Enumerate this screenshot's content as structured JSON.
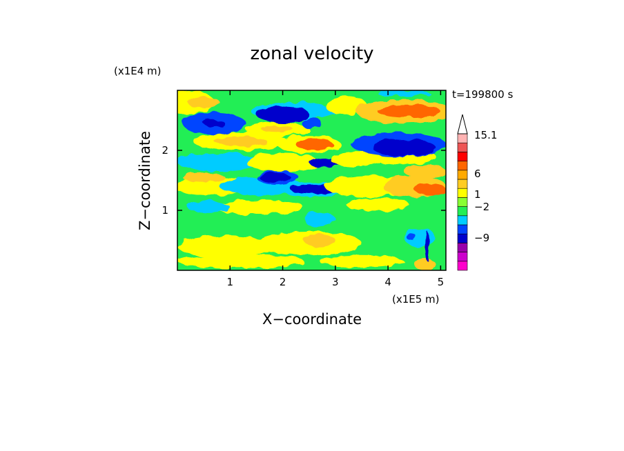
{
  "chart_data": {
    "type": "heatmap",
    "title": "zonal velocity",
    "time_label": "t=199800 s",
    "xlabel": "X−coordinate",
    "ylabel": "Z−coordinate",
    "x_unit_label": "(x1E5 m)",
    "y_unit_label": "(x1E4 m)",
    "xlim": [
      0,
      5.1
    ],
    "ylim": [
      0,
      3.0
    ],
    "x_ticks": [
      1,
      2,
      3,
      4,
      5
    ],
    "y_ticks": [
      1,
      2
    ],
    "colorbar": {
      "colors": [
        "#ff00cc",
        "#cc00cc",
        "#9900aa",
        "#0000cc",
        "#0044ff",
        "#00ccff",
        "#22ee55",
        "#88ff33",
        "#ffff00",
        "#ffcc22",
        "#ffaa00",
        "#ff6600",
        "#ff0000",
        "#ee5555",
        "#ffb3b3"
      ],
      "tick_labels": [
        "15.1",
        "6",
        "1",
        "−2",
        "−9"
      ],
      "extend_top": true
    },
    "field": {
      "base": "#22ee55",
      "blobs": [
        {
          "x": 0.9,
          "z": 0.4,
          "rx": 0.9,
          "rz": 0.18,
          "level": "#ffff00"
        },
        {
          "x": 2.5,
          "z": 0.45,
          "rx": 1.0,
          "rz": 0.2,
          "level": "#ffff00"
        },
        {
          "x": 2.7,
          "z": 0.5,
          "rx": 0.3,
          "rz": 0.1,
          "level": "#ffcc22"
        },
        {
          "x": 1.2,
          "z": 0.15,
          "rx": 1.2,
          "rz": 0.12,
          "level": "#ffff00"
        },
        {
          "x": 3.5,
          "z": 0.15,
          "rx": 0.8,
          "rz": 0.1,
          "level": "#ffff00"
        },
        {
          "x": 1.5,
          "z": 1.05,
          "rx": 0.9,
          "rz": 0.12,
          "level": "#ffff00"
        },
        {
          "x": 3.8,
          "z": 1.1,
          "rx": 0.6,
          "rz": 0.1,
          "level": "#ffff00"
        },
        {
          "x": 2.7,
          "z": 0.85,
          "rx": 0.3,
          "rz": 0.12,
          "level": "#00ccff"
        },
        {
          "x": 0.6,
          "z": 1.05,
          "rx": 0.4,
          "rz": 0.1,
          "level": "#00ccff"
        },
        {
          "x": 4.6,
          "z": 0.55,
          "rx": 0.3,
          "rz": 0.15,
          "level": "#00ccff"
        },
        {
          "x": 4.45,
          "z": 0.55,
          "rx": 0.1,
          "rz": 0.05,
          "level": "#0044ff"
        },
        {
          "x": 0.7,
          "z": 1.4,
          "rx": 0.8,
          "rz": 0.15,
          "level": "#ffff00"
        },
        {
          "x": 0.5,
          "z": 1.55,
          "rx": 0.4,
          "rz": 0.08,
          "level": "#ffcc22"
        },
        {
          "x": 1.6,
          "z": 1.4,
          "rx": 0.8,
          "rz": 0.15,
          "level": "#00ccff"
        },
        {
          "x": 1.9,
          "z": 1.55,
          "rx": 0.4,
          "rz": 0.12,
          "level": "#0044ff"
        },
        {
          "x": 1.85,
          "z": 1.55,
          "rx": 0.3,
          "rz": 0.08,
          "level": "#0000cc"
        },
        {
          "x": 2.6,
          "z": 1.35,
          "rx": 0.7,
          "rz": 0.12,
          "level": "#00ccff"
        },
        {
          "x": 2.6,
          "z": 1.35,
          "rx": 0.45,
          "rz": 0.08,
          "level": "#0000cc"
        },
        {
          "x": 3.6,
          "z": 1.4,
          "rx": 0.8,
          "rz": 0.18,
          "level": "#ffff00"
        },
        {
          "x": 4.5,
          "z": 1.4,
          "rx": 0.6,
          "rz": 0.18,
          "level": "#ffcc22"
        },
        {
          "x": 4.8,
          "z": 1.35,
          "rx": 0.3,
          "rz": 0.1,
          "level": "#ff6600"
        },
        {
          "x": 0.8,
          "z": 1.8,
          "rx": 0.8,
          "rz": 0.15,
          "level": "#00ccff"
        },
        {
          "x": 2.0,
          "z": 1.8,
          "rx": 0.7,
          "rz": 0.15,
          "level": "#ffff00"
        },
        {
          "x": 2.8,
          "z": 1.8,
          "rx": 0.3,
          "rz": 0.08,
          "level": "#0000cc"
        },
        {
          "x": 3.4,
          "z": 1.85,
          "rx": 0.5,
          "rz": 0.12,
          "level": "#ffff00"
        },
        {
          "x": 4.3,
          "z": 1.9,
          "rx": 0.6,
          "rz": 0.15,
          "level": "#ffff00"
        },
        {
          "x": 4.7,
          "z": 1.65,
          "rx": 0.4,
          "rz": 0.1,
          "level": "#ffcc22"
        },
        {
          "x": 1.2,
          "z": 2.15,
          "rx": 0.9,
          "rz": 0.15,
          "level": "#ffff00"
        },
        {
          "x": 1.2,
          "z": 2.15,
          "rx": 0.5,
          "rz": 0.08,
          "level": "#ffcc22"
        },
        {
          "x": 2.5,
          "z": 2.1,
          "rx": 0.6,
          "rz": 0.15,
          "level": "#ffff00"
        },
        {
          "x": 2.6,
          "z": 2.1,
          "rx": 0.35,
          "rz": 0.1,
          "level": "#ff6600"
        },
        {
          "x": 4.2,
          "z": 2.1,
          "rx": 0.9,
          "rz": 0.2,
          "level": "#0044ff"
        },
        {
          "x": 4.3,
          "z": 2.05,
          "rx": 0.6,
          "rz": 0.14,
          "level": "#0000cc"
        },
        {
          "x": 0.7,
          "z": 2.45,
          "rx": 0.6,
          "rz": 0.18,
          "level": "#0044ff"
        },
        {
          "x": 0.7,
          "z": 2.45,
          "rx": 0.2,
          "rz": 0.06,
          "level": "#0000cc"
        },
        {
          "x": 1.9,
          "z": 2.35,
          "rx": 0.6,
          "rz": 0.12,
          "level": "#ffff00"
        },
        {
          "x": 1.9,
          "z": 2.35,
          "rx": 0.3,
          "rz": 0.06,
          "level": "#ffcc22"
        },
        {
          "x": 0.2,
          "z": 2.8,
          "rx": 0.5,
          "rz": 0.2,
          "level": "#ffff00"
        },
        {
          "x": 0.5,
          "z": 2.8,
          "rx": 0.3,
          "rz": 0.1,
          "level": "#ffcc22"
        },
        {
          "x": 2.2,
          "z": 2.65,
          "rx": 0.8,
          "rz": 0.15,
          "level": "#00ccff"
        },
        {
          "x": 2.0,
          "z": 2.6,
          "rx": 0.5,
          "rz": 0.14,
          "level": "#0000cc"
        },
        {
          "x": 2.55,
          "z": 2.45,
          "rx": 0.2,
          "rz": 0.08,
          "level": "#0044ff"
        },
        {
          "x": 3.2,
          "z": 2.75,
          "rx": 0.4,
          "rz": 0.15,
          "level": "#ffff00"
        },
        {
          "x": 4.3,
          "z": 2.65,
          "rx": 0.9,
          "rz": 0.2,
          "level": "#ffcc22"
        },
        {
          "x": 4.4,
          "z": 2.65,
          "rx": 0.6,
          "rz": 0.1,
          "level": "#ff6600"
        },
        {
          "x": 4.3,
          "z": 2.95,
          "rx": 0.5,
          "rz": 0.05,
          "level": "#00ccff"
        },
        {
          "x": 4.7,
          "z": 0.1,
          "rx": 0.2,
          "rz": 0.1,
          "level": "#ffcc22"
        },
        {
          "x": 4.75,
          "z": 0.4,
          "rx": 0.04,
          "rz": 0.25,
          "level": "#0000cc"
        }
      ]
    }
  }
}
